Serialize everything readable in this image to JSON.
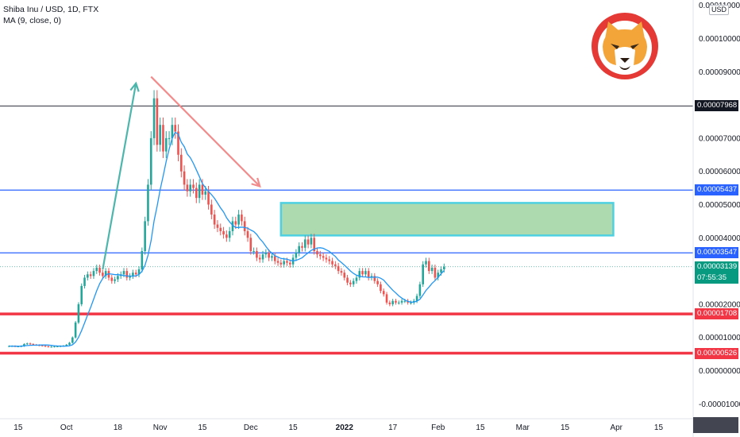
{
  "legend": {
    "symbol": "Shiba Inu / USD, 1D, FTX",
    "indicator": "MA (9, close, 0)"
  },
  "currency": "USD",
  "colors": {
    "up": "#26a69a",
    "down": "#ef5350",
    "ma": "#2196f3",
    "blue_level": "#2962ff",
    "red_level": "#f23645",
    "gray_level": "#434651",
    "zone_fill": "#a5d6a7",
    "zone_border": "#4dd0e1",
    "arrow_up": "#4db6ac",
    "arrow_down": "#f28b8b",
    "current": "#089981"
  },
  "axes": {
    "y_ticks": [
      "0.00011000",
      "0.00010000",
      "0.00009000",
      "0.00007000",
      "0.00006000",
      "0.00005000",
      "0.00004000",
      "0.00002000",
      "0.00001000",
      "0.00000000",
      "-0.00001000"
    ],
    "x_ticks": [
      "15",
      "Oct",
      "18",
      "Nov",
      "15",
      "Dec",
      "15",
      "2022",
      "17",
      "Feb",
      "15",
      "Mar",
      "15",
      "Apr",
      "15"
    ],
    "x_bold": "2022"
  },
  "price_labels": {
    "gray_line": "0.00007968",
    "upper_blue": "0.00005437",
    "lower_blue": "0.00003547",
    "current_price": "0.00003139",
    "countdown": "07:55:35",
    "upper_red": "0.00001708",
    "lower_red": "0.00000526"
  },
  "chart_data": {
    "type": "candlestick",
    "title": "Shiba Inu / USD, 1D, FTX",
    "ylim": [
      -1.2e-05,
      0.000111
    ],
    "horizontal_levels": [
      {
        "value": 7.968e-05,
        "color": "gray"
      },
      {
        "value": 5.437e-05,
        "color": "blue"
      },
      {
        "value": 3.547e-05,
        "color": "blue"
      },
      {
        "value": 1.708e-05,
        "color": "red"
      },
      {
        "value": 5.26e-06,
        "color": "red"
      }
    ],
    "zone": {
      "from_date": "2021-12-11",
      "to_date": "2022-03-31",
      "low": 4.07e-05,
      "high": 5.05e-05
    },
    "arrows": [
      {
        "from_date": "2021-10-13",
        "from_price": 3.05e-05,
        "to_date": "2021-10-24",
        "to_price": 8.65e-05
      },
      {
        "from_date": "2021-10-29",
        "from_price": 8.85e-05,
        "to_date": "2021-12-04",
        "to_price": 5.55e-05
      }
    ],
    "closes": {
      "dates_start": "2021-09-12",
      "values": [
        7.4e-06,
        7.4e-06,
        7.3e-06,
        7.3e-06,
        7.4e-06,
        8e-06,
        8.2e-06,
        8e-06,
        7.8e-06,
        7.7e-06,
        7.6e-06,
        7.5e-06,
        7.3e-06,
        7.2e-06,
        7.2e-06,
        7.3e-06,
        7.3e-06,
        7.4e-06,
        7.5e-06,
        7.8e-06,
        8.4e-06,
        1e-05,
        1.45e-05,
        2e-05,
        2.55e-05,
        2.8e-05,
        2.9e-05,
        2.85e-05,
        3e-05,
        3.1e-05,
        2.95e-05,
        2.85e-05,
        3e-05,
        2.8e-05,
        2.7e-05,
        2.75e-05,
        2.85e-05,
        2.9e-05,
        3e-05,
        2.8e-05,
        2.85e-05,
        2.95e-05,
        2.9e-05,
        3.05e-05,
        3.6e-05,
        4.5e-05,
        5.6e-05,
        7e-05,
        8.2e-05,
        6.8e-05,
        7.4e-05,
        6.6e-05,
        7e-05,
        7e-05,
        7.4e-05,
        7.2e-05,
        6.5e-05,
        6e-05,
        5.6e-05,
        5.4e-05,
        5.6e-05,
        5.5e-05,
        5.2e-05,
        5.6e-05,
        5.3e-05,
        5.4e-05,
        5e-05,
        4.7e-05,
        4.4e-05,
        4.3e-05,
        4.2e-05,
        4.1e-05,
        4e-05,
        4.2e-05,
        4.5e-05,
        4.4e-05,
        4.7e-05,
        4.5e-05,
        4.2e-05,
        4e-05,
        3.6e-05,
        3.6e-05,
        3.4e-05,
        3.35e-05,
        3.5e-05,
        3.55e-05,
        3.4e-05,
        3.45e-05,
        3.3e-05,
        3.25e-05,
        3.2e-05,
        3.3e-05,
        3.25e-05,
        3.2e-05,
        3.4e-05,
        3.55e-05,
        3.75e-05,
        3.7e-05,
        3.95e-05,
        3.8e-05,
        4e-05,
        3.6e-05,
        3.5e-05,
        3.45e-05,
        3.4e-05,
        3.35e-05,
        3.3e-05,
        3.2e-05,
        3.15e-05,
        3e-05,
        2.95e-05,
        2.8e-05,
        2.65e-05,
        2.6e-05,
        2.7e-05,
        2.8e-05,
        3e-05,
        2.9e-05,
        3e-05,
        2.8e-05,
        2.85e-05,
        2.7e-05,
        2.6e-05,
        2.4e-05,
        2.3e-05,
        2.05e-05,
        2e-05,
        2.1e-05,
        2.05e-05,
        2.05e-05,
        2.1e-05,
        2.1e-05,
        2.05e-05,
        2.05e-05,
        2.1e-05,
        2.25e-05,
        2.6e-05,
        3.2e-05,
        3.3e-05,
        3e-05,
        3.1e-05,
        2.8e-05,
        2.95e-05,
        3.05e-05,
        3.13e-05
      ]
    }
  }
}
